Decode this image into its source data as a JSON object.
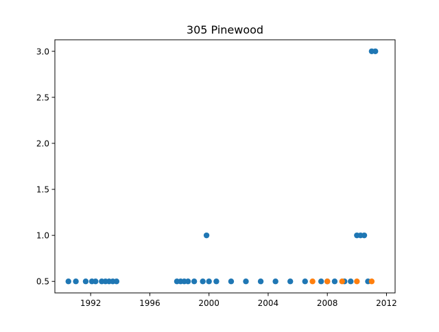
{
  "chart_data": {
    "type": "scatter",
    "title": "305 Pinewood",
    "xlabel": "",
    "ylabel": "",
    "xlim": [
      "1989-08-01",
      "2012-08-01"
    ],
    "ylim": [
      0.375,
      3.125
    ],
    "xticks": [
      "1992",
      "1996",
      "2000",
      "2004",
      "2008",
      "2012"
    ],
    "yticks": [
      "0.5",
      "1.0",
      "1.5",
      "2.0",
      "2.5",
      "3.0"
    ],
    "grid": false,
    "legend": "none",
    "series": [
      {
        "color": "#1f77b4",
        "points": [
          {
            "x": "1990-07-01",
            "y": 0.5
          },
          {
            "x": "1991-01-01",
            "y": 0.5
          },
          {
            "x": "1991-09-01",
            "y": 0.5
          },
          {
            "x": "1992-02-01",
            "y": 0.5
          },
          {
            "x": "1992-05-01",
            "y": 0.5
          },
          {
            "x": "1992-10-01",
            "y": 0.5
          },
          {
            "x": "1993-01-01",
            "y": 0.5
          },
          {
            "x": "1993-04-01",
            "y": 0.5
          },
          {
            "x": "1993-07-01",
            "y": 0.5
          },
          {
            "x": "1993-10-01",
            "y": 0.5
          },
          {
            "x": "1997-11-01",
            "y": 0.5
          },
          {
            "x": "1998-02-01",
            "y": 0.5
          },
          {
            "x": "1998-05-01",
            "y": 0.5
          },
          {
            "x": "1998-08-01",
            "y": 0.5
          },
          {
            "x": "1999-01-01",
            "y": 0.5
          },
          {
            "x": "1999-08-01",
            "y": 0.5
          },
          {
            "x": "1999-11-01",
            "y": 1.0
          },
          {
            "x": "2000-01-01",
            "y": 0.5
          },
          {
            "x": "2000-07-01",
            "y": 0.5
          },
          {
            "x": "2001-07-01",
            "y": 0.5
          },
          {
            "x": "2002-07-01",
            "y": 0.5
          },
          {
            "x": "2003-07-01",
            "y": 0.5
          },
          {
            "x": "2004-07-01",
            "y": 0.5
          },
          {
            "x": "2005-07-01",
            "y": 0.5
          },
          {
            "x": "2006-07-01",
            "y": 0.5
          },
          {
            "x": "2007-08-01",
            "y": 0.5
          },
          {
            "x": "2008-01-01",
            "y": 0.5
          },
          {
            "x": "2008-07-01",
            "y": 0.5
          },
          {
            "x": "2009-03-01",
            "y": 0.5
          },
          {
            "x": "2009-08-01",
            "y": 0.5
          },
          {
            "x": "2010-01-01",
            "y": 1.0
          },
          {
            "x": "2010-04-01",
            "y": 1.0
          },
          {
            "x": "2010-07-01",
            "y": 1.0
          },
          {
            "x": "2010-10-01",
            "y": 0.5
          },
          {
            "x": "2011-01-01",
            "y": 3.0
          },
          {
            "x": "2011-04-01",
            "y": 3.0
          }
        ]
      },
      {
        "color": "#ff7f0e",
        "points": [
          {
            "x": "2007-01-01",
            "y": 0.5
          },
          {
            "x": "2008-01-01",
            "y": 0.5
          },
          {
            "x": "2009-01-01",
            "y": 0.5
          },
          {
            "x": "2010-01-01",
            "y": 0.5
          },
          {
            "x": "2011-01-01",
            "y": 0.5
          }
        ]
      }
    ]
  }
}
